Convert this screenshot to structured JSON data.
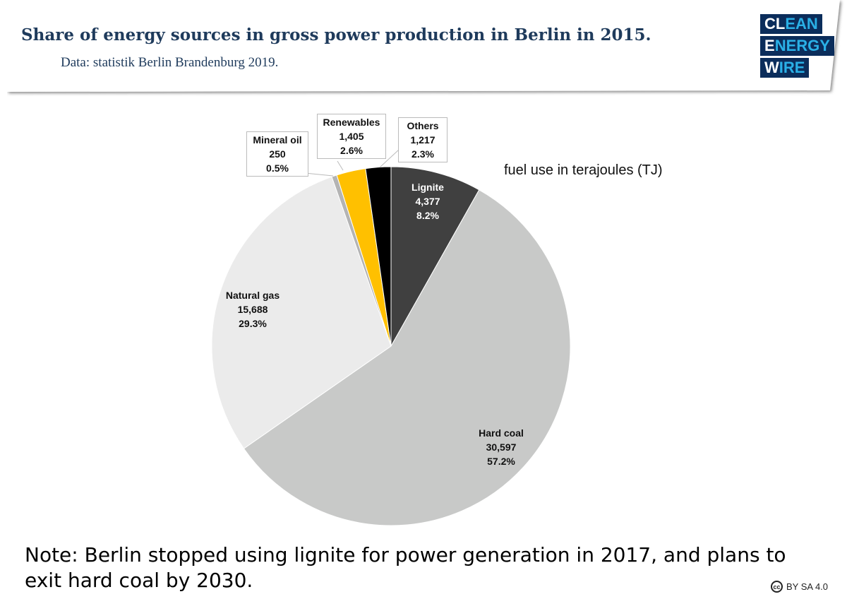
{
  "header": {
    "title": "Share of energy sources in gross power production in Berlin in 2015.",
    "subtitle": "Data: statistik Berlin Brandenburg 2019."
  },
  "logo": {
    "lines": [
      [
        "CL",
        "EAN"
      ],
      [
        "E",
        "NERGY"
      ],
      [
        "W",
        "IRE"
      ]
    ],
    "colors": {
      "bg": "#0b2d5b",
      "accent": "#2ab0e6"
    }
  },
  "note": "Note: Berlin stopped using lignite for power generation in 2017, and plans to exit hard coal by 2030.",
  "license": {
    "icon": "cc-icon",
    "text": "BY SA 4.0",
    "icon_text": "cc"
  },
  "chart_data": {
    "type": "pie",
    "annotation": "fuel use in terajoules (TJ)",
    "start": "top",
    "direction": "clockwise",
    "slices": [
      {
        "label": "Lignite",
        "value": 4377,
        "value_label": "4,377",
        "percent": "8.2%",
        "color": "#404040"
      },
      {
        "label": "Hard coal",
        "value": 30597,
        "value_label": "30,597",
        "percent": "57.2%",
        "color": "#c8c9c8"
      },
      {
        "label": "Natural gas",
        "value": 15688,
        "value_label": "15,688",
        "percent": "29.3%",
        "color": "#ebebeb"
      },
      {
        "label": "Mineral oil",
        "value": 250,
        "value_label": "250",
        "percent": "0.5%",
        "color": "#b4b4b4"
      },
      {
        "label": "Renewables",
        "value": 1405,
        "value_label": "1,405",
        "percent": "2.6%",
        "color": "#ffc000"
      },
      {
        "label": "Others",
        "value": 1217,
        "value_label": "1,217",
        "percent": "2.3%",
        "color": "#000000"
      }
    ]
  }
}
